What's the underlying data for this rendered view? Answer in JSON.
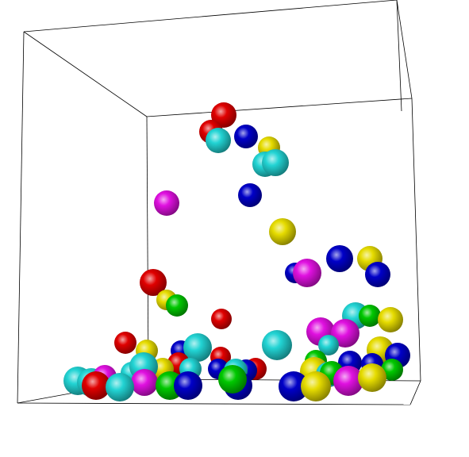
{
  "colors": {
    "background": "#ffffff",
    "edge": "#000000",
    "red": "#e00000",
    "blue": "#0000c8",
    "cyan": "#22d4d4",
    "yellow": "#e6dc00",
    "magenta": "#e010e0",
    "green": "#00c800"
  }
}
